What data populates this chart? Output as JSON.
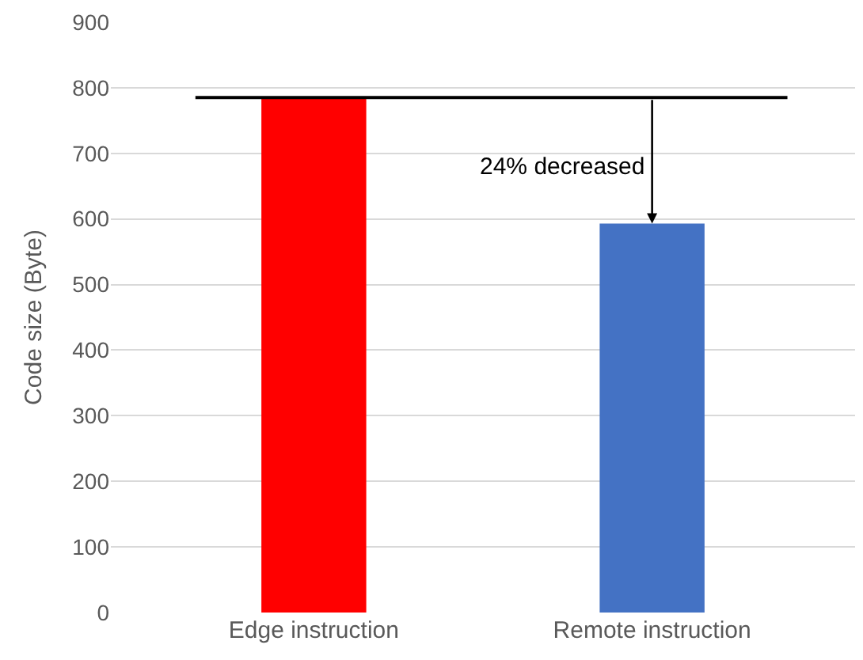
{
  "chart_data": {
    "type": "bar",
    "ylabel": "Code size (Byte)",
    "categories": [
      "Edge instruction",
      "Remote instruction"
    ],
    "values": [
      785,
      593
    ],
    "colors": [
      "#ff0000",
      "#4472c4"
    ],
    "ylim": [
      0,
      900
    ],
    "yticks": [
      0,
      100,
      200,
      300,
      400,
      500,
      600,
      700,
      800,
      900
    ],
    "grid": "y",
    "ref_lines": [
      {
        "axis": "y",
        "value": 785,
        "color": "#000000"
      }
    ],
    "annotations": [
      {
        "text": "24% decreased",
        "x": "Remote instruction",
        "y": 593
      }
    ]
  }
}
